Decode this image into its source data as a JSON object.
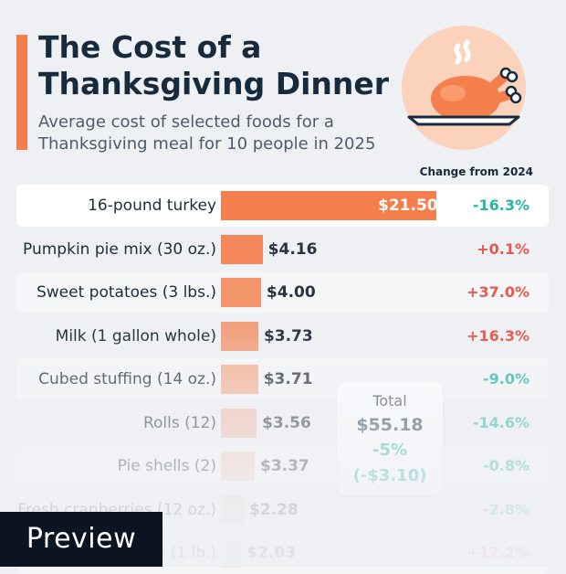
{
  "header": {
    "title": "The Cost of a Thanksgiving Dinner",
    "subtitle": "Average cost of selected foods for a Thanksgiving meal for 10 people in 2025"
  },
  "chart_data": {
    "type": "bar",
    "orientation": "horizontal",
    "title": "The Cost of a Thanksgiving Dinner",
    "subtitle": "Average cost of selected foods for a Thanksgiving meal for 10 people in 2025",
    "column_header": "Change from 2024",
    "categories": [
      "16-pound turkey",
      "Pumpkin pie mix (30 oz.)",
      "Sweet potatoes (3 lbs.)",
      "Milk (1 gallon whole)",
      "Cubed stuffing (14 oz.)",
      "Rolls (12)",
      "Pie shells (2)",
      "Fresh cranberries (12 oz.)",
      "Peas (1 lb.)"
    ],
    "values": [
      21.5,
      4.16,
      4.0,
      3.73,
      3.71,
      3.56,
      3.37,
      2.28,
      2.03
    ],
    "value_labels": [
      "$21.50",
      "$4.16",
      "$4.00",
      "$3.73",
      "$3.71",
      "$3.56",
      "$3.37",
      "$2.28",
      "$2.03"
    ],
    "change_labels": [
      "-16.3%",
      "+0.1%",
      "+37.0%",
      "+16.3%",
      "-9.0%",
      "-14.6%",
      "-0.8%",
      "-2.8%",
      "+17.2%"
    ],
    "change_values": [
      -16.3,
      0.1,
      37.0,
      16.3,
      -9.0,
      -14.6,
      -0.8,
      -2.8,
      17.2
    ],
    "xlim": [
      0,
      21.5
    ],
    "total": {
      "label": "Total",
      "value": "$55.18",
      "change": "-5%",
      "change_abs": "(-$3.10)"
    }
  },
  "colors": {
    "bar": "#f47f4c",
    "negative": "#28b5a6",
    "positive": "#e8584f",
    "title": "#172b3d",
    "illustration_circle": "#fbd3bd"
  },
  "icons": {
    "illustration": "roast-turkey-icon"
  },
  "badge": {
    "label": "Preview"
  }
}
